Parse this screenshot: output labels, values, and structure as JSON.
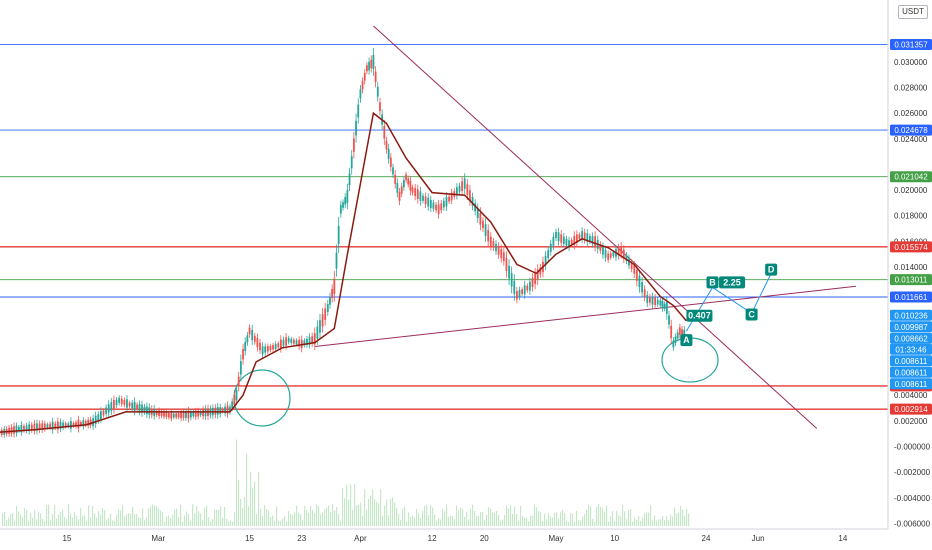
{
  "currency_label": "USDT",
  "countdown": "01:33:46",
  "colors": {
    "blue_level": "#2962ff",
    "green_level": "#43a047",
    "red_level": "#e53935",
    "trend_line": "#9c2c5e",
    "moving_average": "#8b1a0f",
    "wave_label": "#00897b",
    "price_tag": "#2196f3",
    "volume": "#c8e6c9",
    "circle": "#26a69a"
  },
  "chart_data": {
    "type": "line",
    "title": "",
    "xlabel": "",
    "ylabel": "",
    "grid": false,
    "legend": "none",
    "ylim": [
      -0.0062,
      0.0342
    ],
    "y_ticks": [
      {
        "value": 0.03,
        "label": "0.030000"
      },
      {
        "value": 0.028,
        "label": "0.028000"
      },
      {
        "value": 0.026,
        "label": "0.026000"
      },
      {
        "value": 0.024,
        "label": "0.024000"
      },
      {
        "value": 0.02,
        "label": "0.020000"
      },
      {
        "value": 0.018,
        "label": "0.018000"
      },
      {
        "value": 0.016,
        "label": "0.016000"
      },
      {
        "value": 0.014,
        "label": "0.014000"
      },
      {
        "value": 0.004,
        "label": "0.004000"
      },
      {
        "value": 0.002,
        "label": "0.002000"
      },
      {
        "value": 0.0,
        "label": "-0.000000"
      },
      {
        "value": -0.002,
        "label": "-0.002000"
      },
      {
        "value": -0.004,
        "label": "-0.004000"
      },
      {
        "value": -0.006,
        "label": "-0.006000"
      }
    ],
    "x_ticks": [
      {
        "date": "2021-02-15",
        "label": "15"
      },
      {
        "date": "2021-03-01",
        "label": "Mar"
      },
      {
        "date": "2021-03-15",
        "label": "15"
      },
      {
        "date": "2021-03-23",
        "label": "23"
      },
      {
        "date": "2021-04-01",
        "label": "Apr"
      },
      {
        "date": "2021-04-12",
        "label": "12"
      },
      {
        "date": "2021-04-20",
        "label": "20"
      },
      {
        "date": "2021-05-01",
        "label": "May"
      },
      {
        "date": "2021-05-10",
        "label": "10"
      },
      {
        "date": "2021-05-24",
        "label": "24"
      },
      {
        "date": "2021-06-01",
        "label": "Jun"
      },
      {
        "date": "2021-06-14",
        "label": "14"
      }
    ],
    "horizontal_levels": [
      {
        "value": 0.031357,
        "label": "0.031357",
        "color": "blue"
      },
      {
        "value": 0.024678,
        "label": "0.024678",
        "color": "blue"
      },
      {
        "value": 0.021042,
        "label": "0.021042",
        "color": "green"
      },
      {
        "value": 0.015574,
        "label": "0.015574",
        "color": "red"
      },
      {
        "value": 0.013011,
        "label": "0.013011",
        "color": "green"
      },
      {
        "value": 0.011661,
        "label": "0.011661",
        "color": "blue"
      },
      {
        "value": 0.004726,
        "label": "0.004726",
        "color": "red"
      },
      {
        "value": 0.002914,
        "label": "0.002914",
        "color": "red"
      }
    ],
    "price_tags": [
      {
        "value": 0.010236,
        "label": "0.010236"
      },
      {
        "value": 0.009987,
        "label": "0.009987"
      },
      {
        "value": 0.008662,
        "label": "0.008662"
      },
      {
        "value": 0.008611,
        "label": "0.008611"
      },
      {
        "value": 0.008611,
        "label": "0.008611"
      },
      {
        "value": 0.008611,
        "label": "0.008611"
      }
    ],
    "price_series": [
      {
        "date": "2021-02-01",
        "value": 0.001
      },
      {
        "date": "2021-02-05",
        "value": 0.0011
      },
      {
        "date": "2021-02-08",
        "value": 0.0014
      },
      {
        "date": "2021-02-12",
        "value": 0.0016
      },
      {
        "date": "2021-02-16",
        "value": 0.0017
      },
      {
        "date": "2021-02-19",
        "value": 0.0019
      },
      {
        "date": "2021-02-21",
        "value": 0.0028
      },
      {
        "date": "2021-02-23",
        "value": 0.0036
      },
      {
        "date": "2021-02-25",
        "value": 0.0032
      },
      {
        "date": "2021-02-28",
        "value": 0.0027
      },
      {
        "date": "2021-03-03",
        "value": 0.0024
      },
      {
        "date": "2021-03-06",
        "value": 0.0025
      },
      {
        "date": "2021-03-09",
        "value": 0.0027
      },
      {
        "date": "2021-03-12",
        "value": 0.0029
      },
      {
        "date": "2021-03-13",
        "value": 0.004
      },
      {
        "date": "2021-03-14",
        "value": 0.0072
      },
      {
        "date": "2021-03-15",
        "value": 0.009
      },
      {
        "date": "2021-03-17",
        "value": 0.0075
      },
      {
        "date": "2021-03-19",
        "value": 0.0078
      },
      {
        "date": "2021-03-21",
        "value": 0.0083
      },
      {
        "date": "2021-03-23",
        "value": 0.008
      },
      {
        "date": "2021-03-25",
        "value": 0.0084
      },
      {
        "date": "2021-03-27",
        "value": 0.0108
      },
      {
        "date": "2021-03-28",
        "value": 0.0125
      },
      {
        "date": "2021-03-29",
        "value": 0.0185
      },
      {
        "date": "2021-03-30",
        "value": 0.0195
      },
      {
        "date": "2021-03-31",
        "value": 0.0235
      },
      {
        "date": "2021-04-01",
        "value": 0.0275
      },
      {
        "date": "2021-04-02",
        "value": 0.0295
      },
      {
        "date": "2021-04-03",
        "value": 0.03
      },
      {
        "date": "2021-04-04",
        "value": 0.0265
      },
      {
        "date": "2021-04-05",
        "value": 0.0235
      },
      {
        "date": "2021-04-06",
        "value": 0.0215
      },
      {
        "date": "2021-04-07",
        "value": 0.0195
      },
      {
        "date": "2021-04-08",
        "value": 0.021
      },
      {
        "date": "2021-04-09",
        "value": 0.02
      },
      {
        "date": "2021-04-11",
        "value": 0.0192
      },
      {
        "date": "2021-04-13",
        "value": 0.0185
      },
      {
        "date": "2021-04-15",
        "value": 0.0195
      },
      {
        "date": "2021-04-17",
        "value": 0.0205
      },
      {
        "date": "2021-04-19",
        "value": 0.0182
      },
      {
        "date": "2021-04-21",
        "value": 0.016
      },
      {
        "date": "2021-04-23",
        "value": 0.0148
      },
      {
        "date": "2021-04-25",
        "value": 0.0118
      },
      {
        "date": "2021-04-27",
        "value": 0.0125
      },
      {
        "date": "2021-04-29",
        "value": 0.014
      },
      {
        "date": "2021-05-01",
        "value": 0.0165
      },
      {
        "date": "2021-05-03",
        "value": 0.0158
      },
      {
        "date": "2021-05-05",
        "value": 0.0165
      },
      {
        "date": "2021-05-07",
        "value": 0.016
      },
      {
        "date": "2021-05-09",
        "value": 0.0148
      },
      {
        "date": "2021-05-11",
        "value": 0.0153
      },
      {
        "date": "2021-05-13",
        "value": 0.0138
      },
      {
        "date": "2021-05-15",
        "value": 0.0115
      },
      {
        "date": "2021-05-17",
        "value": 0.0112
      },
      {
        "date": "2021-05-18",
        "value": 0.0108
      },
      {
        "date": "2021-05-19",
        "value": 0.008
      },
      {
        "date": "2021-05-20",
        "value": 0.009
      },
      {
        "date": "2021-05-21",
        "value": 0.0087
      }
    ],
    "moving_average": [
      {
        "date": "2021-02-01",
        "value": 0.001
      },
      {
        "date": "2021-02-10",
        "value": 0.0013
      },
      {
        "date": "2021-02-18",
        "value": 0.0017
      },
      {
        "date": "2021-02-24",
        "value": 0.0027
      },
      {
        "date": "2021-03-02",
        "value": 0.0027
      },
      {
        "date": "2021-03-12",
        "value": 0.0027
      },
      {
        "date": "2021-03-14",
        "value": 0.004
      },
      {
        "date": "2021-03-16",
        "value": 0.0066
      },
      {
        "date": "2021-03-20",
        "value": 0.0077
      },
      {
        "date": "2021-03-25",
        "value": 0.0081
      },
      {
        "date": "2021-03-28",
        "value": 0.0092
      },
      {
        "date": "2021-03-30",
        "value": 0.015
      },
      {
        "date": "2021-04-01",
        "value": 0.0205
      },
      {
        "date": "2021-04-03",
        "value": 0.026
      },
      {
        "date": "2021-04-05",
        "value": 0.0252
      },
      {
        "date": "2021-04-08",
        "value": 0.0225
      },
      {
        "date": "2021-04-12",
        "value": 0.0198
      },
      {
        "date": "2021-04-17",
        "value": 0.0196
      },
      {
        "date": "2021-04-21",
        "value": 0.0175
      },
      {
        "date": "2021-04-25",
        "value": 0.0142
      },
      {
        "date": "2021-04-28",
        "value": 0.0135
      },
      {
        "date": "2021-05-01",
        "value": 0.015
      },
      {
        "date": "2021-05-05",
        "value": 0.0162
      },
      {
        "date": "2021-05-09",
        "value": 0.0155
      },
      {
        "date": "2021-05-13",
        "value": 0.0142
      },
      {
        "date": "2021-05-17",
        "value": 0.0117
      },
      {
        "date": "2021-05-19",
        "value": 0.011
      },
      {
        "date": "2021-05-21",
        "value": 0.0098
      }
    ],
    "trend_lines": [
      {
        "from": {
          "date": "2021-04-03",
          "value": 0.0328
        },
        "to": {
          "date": "2021-06-10",
          "value": 0.0014
        }
      },
      {
        "from": {
          "date": "2021-03-25",
          "value": 0.0078
        },
        "to": {
          "date": "2021-06-16",
          "value": 0.0125
        }
      }
    ],
    "wave_labels": [
      {
        "label": "A",
        "date": "2021-05-21",
        "value": 0.0083
      },
      {
        "label": "B",
        "date": "2021-05-25",
        "value": 0.0128
      },
      {
        "label": "C",
        "date": "2021-05-31",
        "value": 0.0103
      },
      {
        "label": "D",
        "date": "2021-06-03",
        "value": 0.0138
      }
    ],
    "wave_ratios": [
      {
        "label": "0.407",
        "date": "2021-05-23",
        "value": 0.0102
      },
      {
        "label": "2.25",
        "date": "2021-05-28",
        "value": 0.0128
      }
    ],
    "wave_path": [
      {
        "date": "2021-05-21",
        "value": 0.009
      },
      {
        "date": "2021-05-25",
        "value": 0.0124
      },
      {
        "date": "2021-05-31",
        "value": 0.0104
      },
      {
        "date": "2021-06-03",
        "value": 0.0135
      }
    ]
  }
}
